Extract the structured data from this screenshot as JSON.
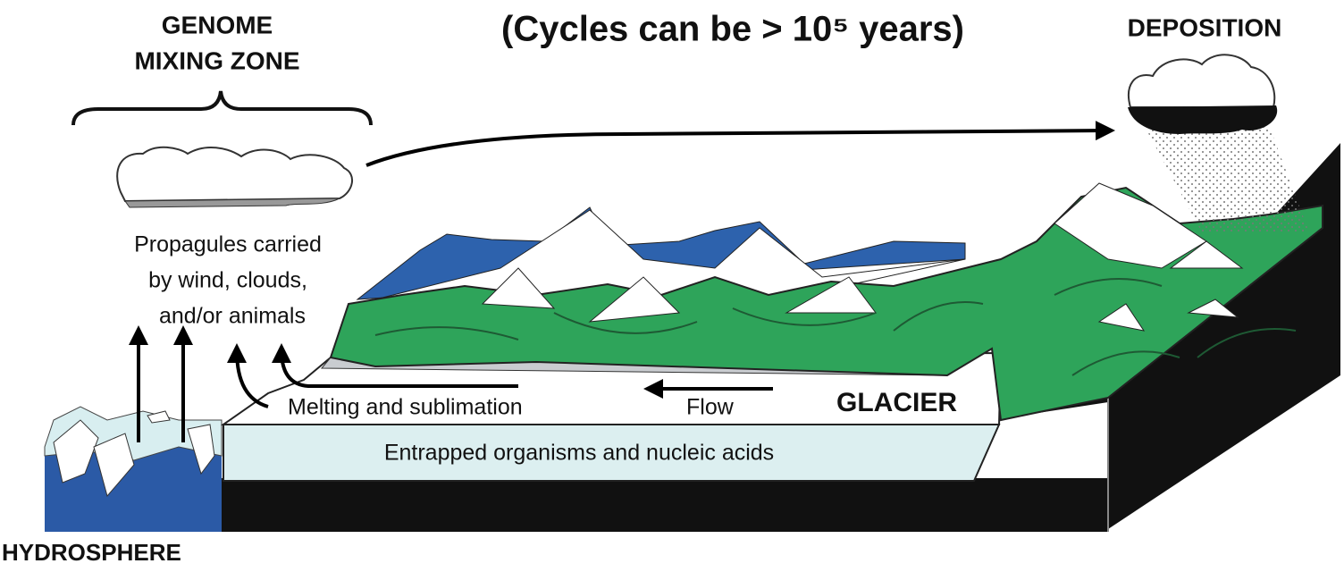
{
  "title": "(Cycles can be > 10⁵ years)",
  "genome_mixing_zone": [
    "GENOME",
    "MIXING ZONE"
  ],
  "deposition": "DEPOSITION",
  "propagules": [
    "Propagules carried",
    "by wind, clouds,",
    "and/or animals"
  ],
  "melting": "Melting and sublimation",
  "flow": "Flow",
  "glacier": "GLACIER",
  "entrapped": "Entrapped organisms and nucleic acids",
  "hydrosphere": "HYDROSPHERE"
}
